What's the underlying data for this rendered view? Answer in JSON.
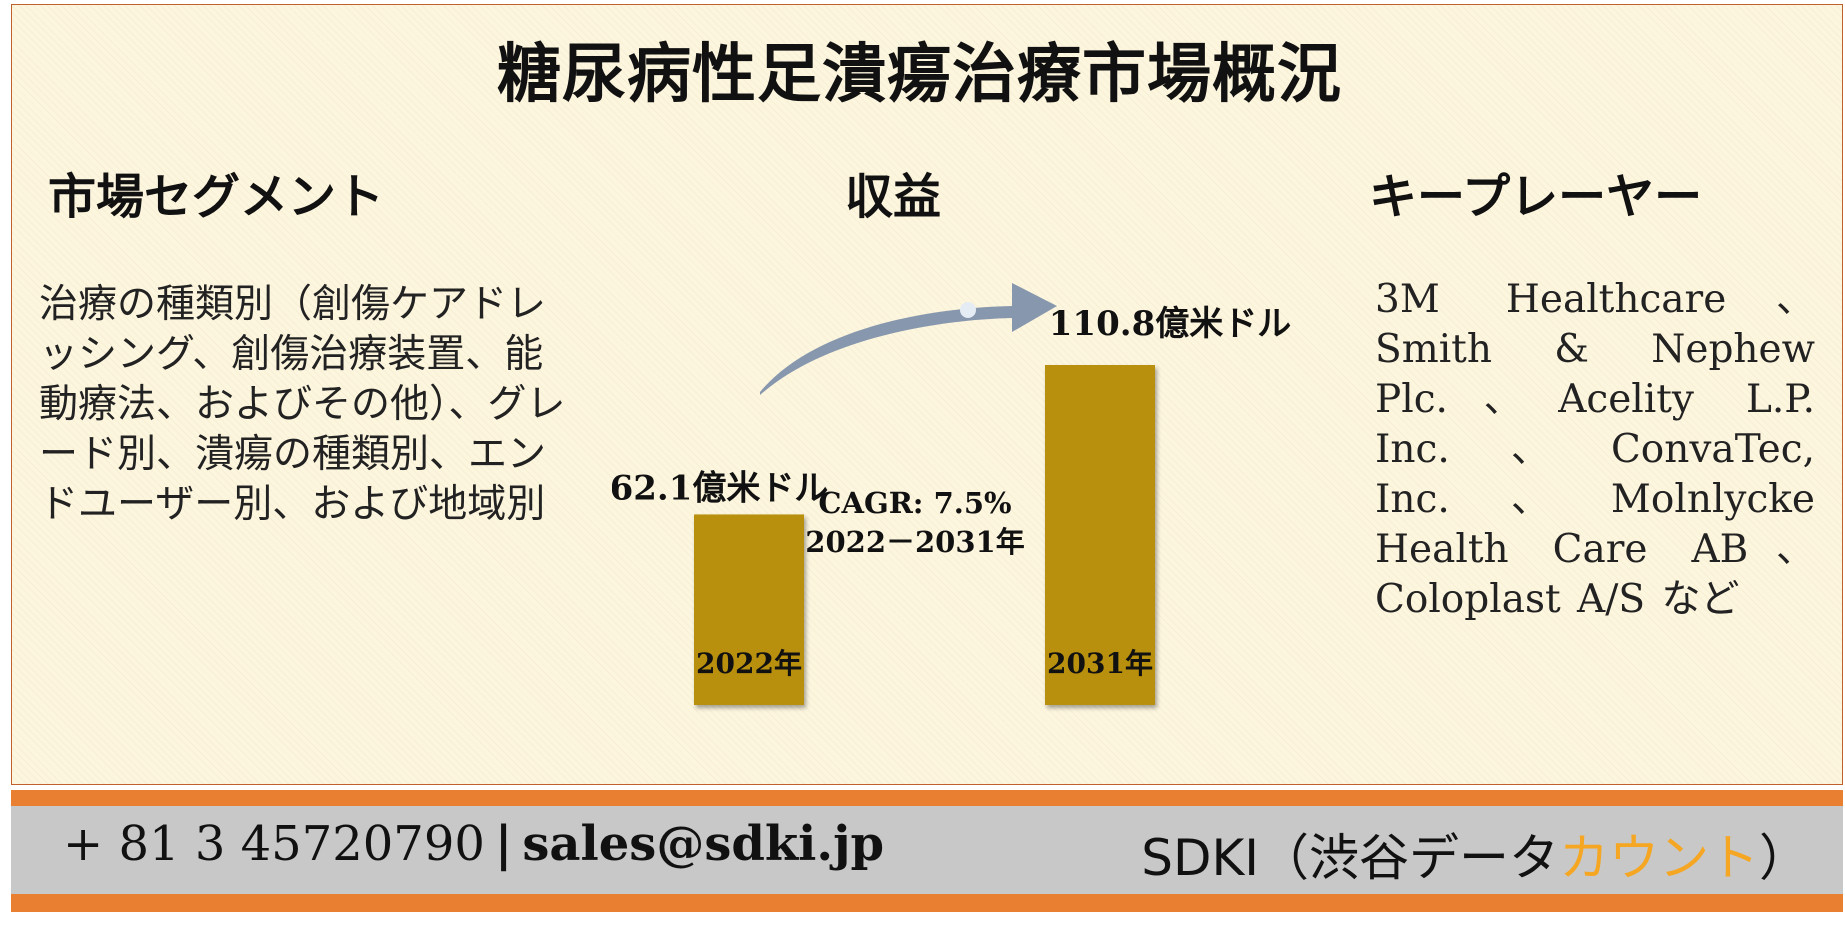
{
  "title": "糖尿病性足潰瘍治療市場概況",
  "segment": {
    "heading": "市場セグメント",
    "text": "治療の種類別（創傷ケアドレッシング、創傷治療装置、能動療法、およびその他）、グレード別、潰瘍の種類別、エンドユーザー別、および地域別"
  },
  "revenue": {
    "heading": "収益"
  },
  "key_players": {
    "heading": "キープレーヤー",
    "text": "3M Healthcare、Smith & Nephew Plc.、Acelity L.P. Inc.、ConvaTec, Inc.、Molnlycke Health Care AB、Coloplast A/S など"
  },
  "chart_data": {
    "type": "bar",
    "categories": [
      "2022年",
      "2031年"
    ],
    "values": [
      62.1,
      110.8
    ],
    "value_labels": [
      "62.1億米ドル",
      "110.8億米ドル"
    ],
    "unit": "億米ドル",
    "annotation": [
      "CAGR: 7.5%",
      "2022－2031年"
    ],
    "bar_color": "#b8900a",
    "arrow_color": "#8797ad"
  },
  "footer": {
    "phone": "+ 81 3 45720790",
    "separator": "|",
    "email": "sales@sdki.jp",
    "brand_main": "SDKI（渋谷データ",
    "brand_accent": "カウント",
    "brand_end": "）"
  }
}
